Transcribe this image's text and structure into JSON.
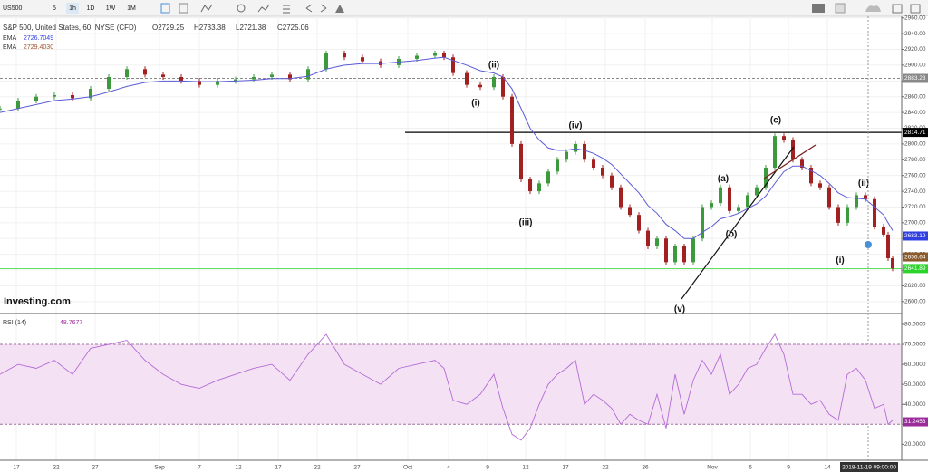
{
  "toolbar": {
    "symbol": "US500",
    "intervals": [
      "5",
      "1h",
      "1D",
      "1W",
      "1M"
    ]
  },
  "chart_data": [
    {
      "type": "candlestick",
      "title": "S&P 500, United States, 60, NYSE (CFD)",
      "ohlc": [
        "O2729.25",
        "H2733.38",
        "L2721.38",
        "C2725.06"
      ],
      "indicators": [
        {
          "name": "EMA",
          "value": "2726.7049",
          "color": "#2f3fe0"
        },
        {
          "name": "EMA",
          "value": "2729.4030",
          "color": "#a0522d"
        }
      ],
      "brand": "Investing.com",
      "crosshair_label": "2018-11-19 09:00:00",
      "xlim": [
        0,
        199
      ],
      "ylim": [
        2586,
        2962
      ],
      "grid": true,
      "x": [
        0,
        4,
        8,
        12,
        16,
        20,
        24,
        28,
        32,
        36,
        40,
        44,
        48,
        52,
        56,
        60,
        64,
        68,
        72,
        76,
        80,
        84,
        88,
        92,
        96,
        98,
        100,
        103,
        106,
        109,
        111,
        113,
        115,
        117,
        119,
        121,
        123,
        125,
        127,
        129,
        131,
        133,
        135,
        137,
        139,
        141,
        143,
        145,
        147,
        149,
        151,
        153,
        155,
        157,
        159,
        161,
        163,
        165,
        167,
        169,
        171,
        173,
        175,
        177,
        179,
        181,
        183,
        185,
        187,
        189,
        191,
        193,
        195,
        196,
        197
      ],
      "series": [
        {
          "up_color": "#3c9a3c",
          "down_color": "#a32020",
          "values": [
            2845,
            2855,
            2860,
            2862,
            2858,
            2870,
            2885,
            2895,
            2888,
            2885,
            2880,
            2875,
            2880,
            2882,
            2885,
            2888,
            2882,
            2895,
            2915,
            2910,
            2905,
            2900,
            2908,
            2912,
            2915,
            2910,
            2890,
            2875,
            2872,
            2885,
            2860,
            2800,
            2755,
            2740,
            2750,
            2765,
            2780,
            2790,
            2800,
            2780,
            2770,
            2760,
            2745,
            2720,
            2710,
            2690,
            2670,
            2680,
            2650,
            2670,
            2650,
            2680,
            2720,
            2725,
            2745,
            2715,
            2720,
            2735,
            2745,
            2770,
            2810,
            2805,
            2780,
            2770,
            2750,
            2745,
            2720,
            2700,
            2720,
            2735,
            2730,
            2695,
            2685,
            2655,
            2642
          ]
        },
        {
          "color": "#5b5bd6",
          "values": [
            2840,
            2845,
            2850,
            2855,
            2857,
            2860,
            2866,
            2873,
            2878,
            2880,
            2880,
            2879,
            2879,
            2880,
            2881,
            2883,
            2883,
            2886,
            2895,
            2900,
            2902,
            2902,
            2904,
            2906,
            2909,
            2910,
            2906,
            2900,
            2893,
            2890,
            2885,
            2870,
            2845,
            2820,
            2805,
            2795,
            2792,
            2792,
            2794,
            2792,
            2788,
            2782,
            2774,
            2762,
            2750,
            2738,
            2722,
            2712,
            2698,
            2690,
            2680,
            2680,
            2688,
            2695,
            2705,
            2708,
            2712,
            2718,
            2724,
            2734,
            2750,
            2765,
            2772,
            2772,
            2766,
            2760,
            2750,
            2738,
            2732,
            2731,
            2730,
            2720,
            2710,
            2700,
            2690
          ]
        }
      ],
      "yticks": [
        {
          "value": 2600,
          "label": "2600.00"
        },
        {
          "value": 2620,
          "label": "2620.00"
        },
        {
          "value": 2640,
          "label": "2640.00"
        },
        {
          "value": 2660,
          "label": "2660.00"
        },
        {
          "value": 2680,
          "label": "2680.00"
        },
        {
          "value": 2700,
          "label": "2700.00"
        },
        {
          "value": 2720,
          "label": "2720.00"
        },
        {
          "value": 2740,
          "label": "2740.00"
        },
        {
          "value": 2760,
          "label": "2760.00"
        },
        {
          "value": 2780,
          "label": "2780.00"
        },
        {
          "value": 2800,
          "label": "2800.00"
        },
        {
          "value": 2820,
          "label": "2820.00"
        },
        {
          "value": 2840,
          "label": "2840.00"
        },
        {
          "value": 2860,
          "label": "2860.00"
        },
        {
          "value": 2880,
          "label": "2880.00"
        },
        {
          "value": 2900,
          "label": "2900.00"
        },
        {
          "value": 2920,
          "label": "2920.00"
        },
        {
          "value": 2940,
          "label": "2940.00"
        },
        {
          "value": 2960,
          "label": "2960.00"
        }
      ],
      "xticks": [
        {
          "value": 3.6,
          "label": "17"
        },
        {
          "value": 12.4,
          "label": "22"
        },
        {
          "value": 21,
          "label": "27"
        },
        {
          "value": 35.2,
          "label": "Sep"
        },
        {
          "value": 44,
          "label": "7"
        },
        {
          "value": 52.6,
          "label": "12"
        },
        {
          "value": 61.4,
          "label": "17"
        },
        {
          "value": 70,
          "label": "22"
        },
        {
          "value": 78.8,
          "label": "27"
        },
        {
          "value": 90,
          "label": "Oct"
        },
        {
          "value": 99,
          "label": "4"
        },
        {
          "value": 107.6,
          "label": "9"
        },
        {
          "value": 116,
          "label": "12"
        },
        {
          "value": 124.8,
          "label": "17"
        },
        {
          "value": 133.6,
          "label": "22"
        },
        {
          "value": 142.4,
          "label": "26"
        },
        {
          "value": 157.2,
          "label": "Nov"
        },
        {
          "value": 165.6,
          "label": "6"
        },
        {
          "value": 174,
          "label": "9"
        },
        {
          "value": 182.6,
          "label": "14"
        }
      ],
      "price_tags": [
        {
          "value": 2883.23,
          "color": "#888888",
          "line": "dashed"
        },
        {
          "value": 2814.71,
          "color": "#000000",
          "line": "solid"
        },
        {
          "value": 2683.19,
          "color": "#2f3fe0",
          "line": "none"
        },
        {
          "value": 2656.64,
          "color": "#8b5a2b",
          "line": "none"
        },
        {
          "value": 2641.89,
          "color": "#2bd42b",
          "line": "solid"
        }
      ],
      "annotations": [
        {
          "text": "(i)",
          "x": 105,
          "price": 2852
        },
        {
          "text": "(ii)",
          "x": 109,
          "price": 2900
        },
        {
          "text": "(iii)",
          "x": 116,
          "price": 2700
        },
        {
          "text": "(iv)",
          "x": 127,
          "price": 2823
        },
        {
          "text": "(v)",
          "x": 150,
          "price": 2590
        },
        {
          "text": "(a)",
          "x": 159.6,
          "price": 2756
        },
        {
          "text": "(b)",
          "x": 161.4,
          "price": 2685
        },
        {
          "text": "(c)",
          "x": 171.2,
          "price": 2830
        },
        {
          "text": "(i)",
          "x": 185.4,
          "price": 2652
        },
        {
          "text": "(ii)",
          "x": 190.6,
          "price": 2750
        }
      ]
    },
    {
      "type": "line",
      "title": "RSI (14)",
      "value_label": "48.7677",
      "color": "#b36bd6",
      "band": [
        30,
        70
      ],
      "band_color": "#f4e2f4",
      "xlim": [
        0,
        199
      ],
      "ylim": [
        12,
        84.5
      ],
      "x": [
        0,
        4,
        8,
        12,
        16,
        20,
        24,
        28,
        32,
        36,
        40,
        44,
        48,
        52,
        56,
        60,
        64,
        68,
        72,
        76,
        80,
        84,
        88,
        92,
        96,
        98,
        100,
        103,
        106,
        109,
        111,
        113,
        115,
        117,
        119,
        121,
        123,
        125,
        127,
        129,
        131,
        133,
        135,
        137,
        139,
        141,
        143,
        145,
        147,
        149,
        151,
        153,
        155,
        157,
        159,
        161,
        163,
        165,
        167,
        169,
        171,
        173,
        175,
        177,
        179,
        181,
        183,
        185,
        187,
        189,
        191,
        193,
        195,
        196,
        197
      ],
      "values": [
        55,
        60,
        58,
        62,
        55,
        68,
        70,
        72,
        62,
        55,
        50,
        48,
        52,
        55,
        58,
        60,
        52,
        65,
        75,
        60,
        55,
        50,
        58,
        60,
        62,
        58,
        42,
        40,
        45,
        55,
        38,
        25,
        22,
        28,
        40,
        50,
        55,
        58,
        62,
        40,
        45,
        42,
        38,
        30,
        35,
        32,
        30,
        45,
        28,
        55,
        35,
        52,
        62,
        55,
        65,
        45,
        50,
        58,
        60,
        68,
        75,
        65,
        45,
        45,
        40,
        42,
        35,
        32,
        55,
        58,
        52,
        38,
        40,
        30,
        32
      ],
      "yticks": [
        {
          "value": 20,
          "label": "20.0000"
        },
        {
          "value": 30,
          "label": "30.0000"
        },
        {
          "value": 40,
          "label": "40.0000"
        },
        {
          "value": 50,
          "label": "50.0000"
        },
        {
          "value": 60,
          "label": "60.0000"
        },
        {
          "value": 70,
          "label": "70.0000"
        },
        {
          "value": 80,
          "label": "80.0000"
        }
      ],
      "tag": {
        "value": 31.2453,
        "color": "#9b2d9b"
      }
    }
  ]
}
